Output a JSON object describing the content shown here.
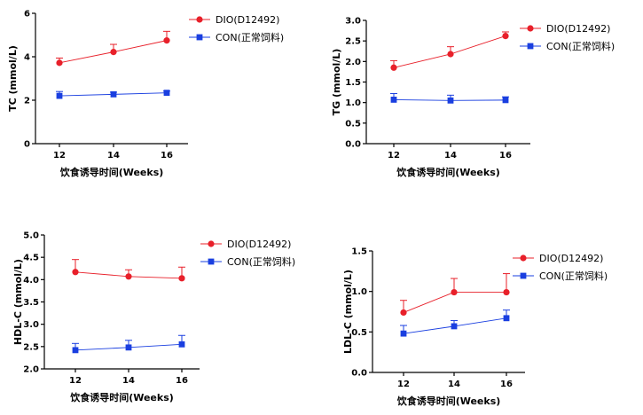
{
  "chart_data": [
    {
      "type": "line",
      "id": "tc",
      "ylabel": "TC (mmol/L)",
      "xlabel": "饮食诱导时间(Weeks)",
      "x": [
        12,
        14,
        16
      ],
      "xticks": [
        "12",
        "14",
        "16"
      ],
      "ylim": [
        0,
        6
      ],
      "yticks": [
        "0",
        "2",
        "4",
        "6"
      ],
      "yticks_values": [
        0,
        2,
        4,
        6
      ],
      "series": [
        {
          "name": "DIO(D12492)",
          "color": "#e8202a",
          "marker": "circle",
          "values": [
            3.72,
            4.22,
            4.75
          ],
          "errors": [
            0.22,
            0.35,
            0.42
          ]
        },
        {
          "name": "CON(正常饲料)",
          "color": "#1a3fe0",
          "marker": "square",
          "values": [
            2.2,
            2.27,
            2.34
          ],
          "errors": [
            0.2,
            0.1,
            0.08
          ]
        }
      ]
    },
    {
      "type": "line",
      "id": "tg",
      "ylabel": "TG (mmol/L)",
      "xlabel": "饮食诱导时间(Weeks)",
      "x": [
        12,
        14,
        16
      ],
      "xticks": [
        "12",
        "14",
        "16"
      ],
      "ylim": [
        0,
        3
      ],
      "yticks": [
        "0.0",
        "0.5",
        "1.0",
        "1.5",
        "2.0",
        "2.5",
        "3.0"
      ],
      "yticks_values": [
        0,
        0.5,
        1,
        1.5,
        2,
        2.5,
        3
      ],
      "series": [
        {
          "name": "DIO(D12492)",
          "color": "#e8202a",
          "marker": "circle",
          "values": [
            1.85,
            2.18,
            2.62
          ],
          "errors": [
            0.17,
            0.18,
            0.1
          ]
        },
        {
          "name": "CON(正常饲料)",
          "color": "#1a3fe0",
          "marker": "square",
          "values": [
            1.07,
            1.05,
            1.06
          ],
          "errors": [
            0.15,
            0.13,
            0.08
          ]
        }
      ]
    },
    {
      "type": "line",
      "id": "hdl",
      "ylabel": "HDL-C (mmol/L)",
      "xlabel": "饮食诱导时间(Weeks)",
      "x": [
        12,
        14,
        16
      ],
      "xticks": [
        "12",
        "14",
        "16"
      ],
      "ylim": [
        2,
        5
      ],
      "yticks": [
        "2.0",
        "2.5",
        "3.0",
        "3.5",
        "4.0",
        "4.5",
        "5.0"
      ],
      "yticks_values": [
        2,
        2.5,
        3,
        3.5,
        4,
        4.5,
        5
      ],
      "series": [
        {
          "name": "DIO(D12492)",
          "color": "#e8202a",
          "marker": "circle",
          "values": [
            4.17,
            4.07,
            4.03
          ],
          "errors": [
            0.28,
            0.15,
            0.25
          ]
        },
        {
          "name": "CON(正常饲料)",
          "color": "#1a3fe0",
          "marker": "square",
          "values": [
            2.42,
            2.48,
            2.55
          ],
          "errors": [
            0.15,
            0.16,
            0.2
          ]
        }
      ]
    },
    {
      "type": "line",
      "id": "ldl",
      "ylabel": "LDL-C (mmol/L)",
      "xlabel": "饮食诱导时间(Weeks)",
      "x": [
        12,
        14,
        16
      ],
      "xticks": [
        "12",
        "14",
        "16"
      ],
      "ylim": [
        0,
        1.5
      ],
      "yticks": [
        "0.0",
        "0.5",
        "1.0",
        "1.5"
      ],
      "yticks_values": [
        0,
        0.5,
        1,
        1.5
      ],
      "series": [
        {
          "name": "DIO(D12492)",
          "color": "#e8202a",
          "marker": "circle",
          "values": [
            0.74,
            0.99,
            0.99
          ],
          "errors": [
            0.15,
            0.17,
            0.23
          ]
        },
        {
          "name": "CON(正常饲料)",
          "color": "#1a3fe0",
          "marker": "square",
          "values": [
            0.48,
            0.57,
            0.67
          ],
          "errors": [
            0.1,
            0.07,
            0.1
          ]
        }
      ]
    }
  ]
}
